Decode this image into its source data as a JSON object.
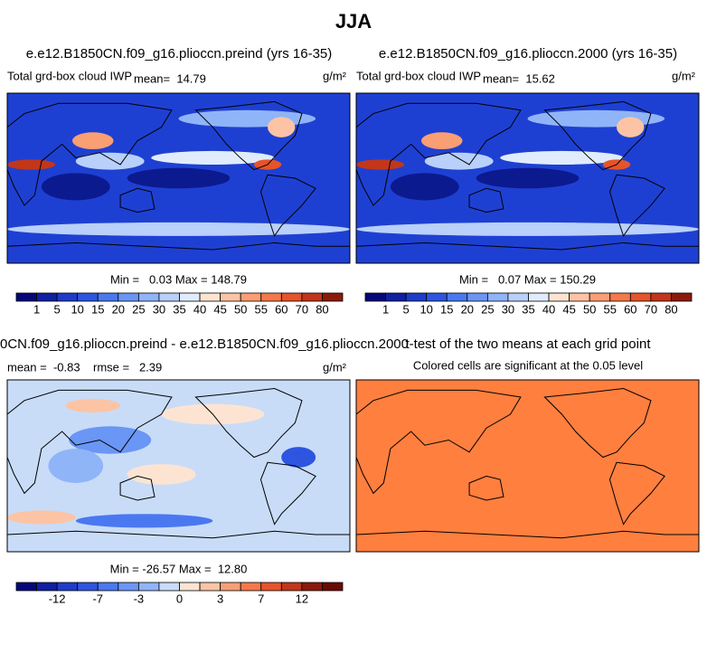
{
  "title": "JJA",
  "panels": [
    {
      "title": "e.e12.B1850CN.f09_g16.plioccn.preind (yrs 16-35)",
      "left_label": "Total grd-box cloud IWP",
      "center_label": "mean=  14.79",
      "units": "g/m²",
      "stats": "Min =   0.03 Max = 148.79",
      "colorbar": {
        "labels": [
          1,
          5,
          10,
          15,
          20,
          25,
          30,
          35,
          40,
          45,
          50,
          55,
          60,
          70,
          80
        ],
        "colors": [
          "#06067a",
          "#1020a0",
          "#1e3cc8",
          "#2d55e0",
          "#4a78f0",
          "#6a96f5",
          "#90b4f8",
          "#b8d0fa",
          "#e0ecfc",
          "#fde4d2",
          "#fcc4a4",
          "#fa9e74",
          "#f5784a",
          "#e5542a",
          "#c2361a",
          "#8c1a0a"
        ]
      }
    },
    {
      "title": "e.e12.B1850CN.f09_g16.plioccn.2000 (yrs 16-35)",
      "left_label": "Total grd-box cloud IWP",
      "center_label": "mean=  15.62",
      "units": "g/m²",
      "stats": "Min =   0.07 Max = 150.29",
      "colorbar": {
        "labels": [
          1,
          5,
          10,
          15,
          20,
          25,
          30,
          35,
          40,
          45,
          50,
          55,
          60,
          70,
          80
        ],
        "colors": [
          "#06067a",
          "#1020a0",
          "#1e3cc8",
          "#2d55e0",
          "#4a78f0",
          "#6a96f5",
          "#90b4f8",
          "#b8d0fa",
          "#e0ecfc",
          "#fde4d2",
          "#fcc4a4",
          "#fa9e74",
          "#f5784a",
          "#e5542a",
          "#c2361a",
          "#8c1a0a"
        ]
      }
    },
    {
      "title": "0CN.f09_g16.plioccn.preind - e.e12.B1850CN.f09_g16.plioccn.2000",
      "left_label": "mean =  -0.83    rmse =   2.39",
      "units": "g/m²",
      "stats": "Min = -26.57 Max =  12.80",
      "colorbar": {
        "labels": [
          -12,
          -7,
          -3,
          0,
          3,
          7,
          12
        ],
        "colors": [
          "#06067a",
          "#1020a0",
          "#1e3cc8",
          "#2d55e0",
          "#4a78f0",
          "#6a96f5",
          "#90b4f8",
          "#c8dcf8",
          "#fde4d2",
          "#fcc4a4",
          "#fa9e74",
          "#f5784a",
          "#e5542a",
          "#c2361a",
          "#8c1a0a",
          "#6a0a04"
        ]
      }
    },
    {
      "title": "t-test of the two means at each grid point",
      "left_label": "Colored cells are significant at the 0.05 level"
    }
  ]
}
